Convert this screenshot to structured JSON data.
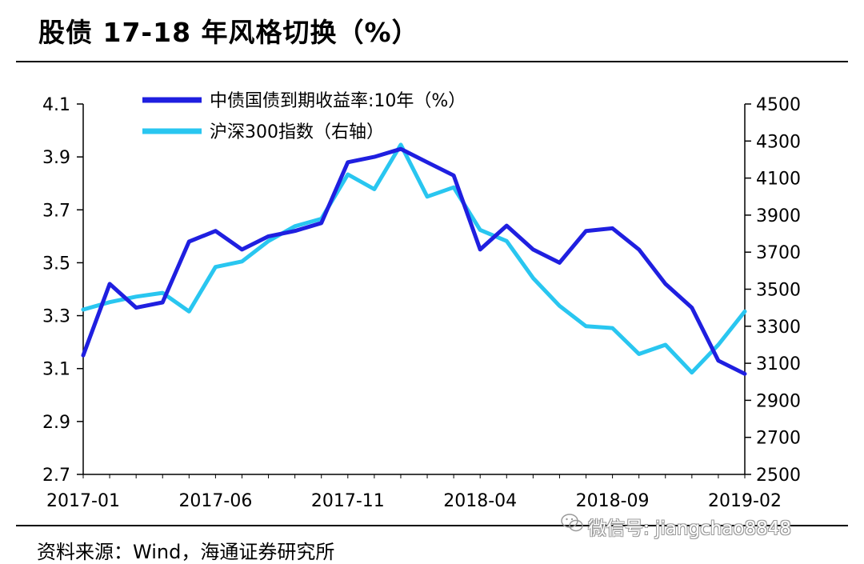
{
  "title": "股债 17-18 年风格切换（%）",
  "source": "资料来源：Wind，海通证券研究所",
  "watermark": "微信号: jiangchao8848",
  "watermark_icon": "wechat-icon",
  "colors": {
    "bond": "#1f1fe0",
    "index": "#29c6f0",
    "axis": "#000000"
  },
  "chart_data": {
    "type": "line",
    "title": "股债 17-18 年风格切换（%）",
    "legend_position": "top-left",
    "grid": false,
    "x": [
      "2017-01",
      "2017-02",
      "2017-03",
      "2017-04",
      "2017-05",
      "2017-06",
      "2017-07",
      "2017-08",
      "2017-09",
      "2017-10",
      "2017-11",
      "2017-12",
      "2018-01",
      "2018-02",
      "2018-03",
      "2018-04",
      "2018-05",
      "2018-06",
      "2018-07",
      "2018-08",
      "2018-09",
      "2018-10",
      "2018-11",
      "2018-12",
      "2019-01",
      "2019-02"
    ],
    "x_tick_labels": [
      "2017-01",
      "2017-06",
      "2017-11",
      "2018-04",
      "2018-09",
      "2019-02"
    ],
    "left_axis": {
      "ylim": [
        2.7,
        4.1
      ],
      "ticks": [
        "4.1",
        "3.9",
        "3.7",
        "3.5",
        "3.3",
        "3.1",
        "2.9",
        "2.7"
      ]
    },
    "right_axis": {
      "ylim": [
        2500,
        4500
      ],
      "ticks": [
        "4500",
        "4300",
        "4100",
        "3900",
        "3700",
        "3500",
        "3300",
        "3100",
        "2900",
        "2700",
        "2500"
      ]
    },
    "series": [
      {
        "name": "中债国债到期收益率:10年（%）",
        "axis": "left",
        "values": [
          3.15,
          3.42,
          3.33,
          3.35,
          3.58,
          3.62,
          3.55,
          3.6,
          3.62,
          3.65,
          3.88,
          3.9,
          3.93,
          3.88,
          3.83,
          3.55,
          3.64,
          3.55,
          3.5,
          3.62,
          3.63,
          3.55,
          3.42,
          3.33,
          3.13,
          3.08
        ]
      },
      {
        "name": "沪深300指数（右轴）",
        "axis": "right",
        "values": [
          3390,
          3430,
          3460,
          3480,
          3380,
          3620,
          3650,
          3760,
          3840,
          3880,
          4120,
          4040,
          4280,
          4000,
          4050,
          3820,
          3760,
          3560,
          3410,
          3300,
          3290,
          3150,
          3200,
          3050,
          3200,
          3380
        ]
      }
    ]
  }
}
